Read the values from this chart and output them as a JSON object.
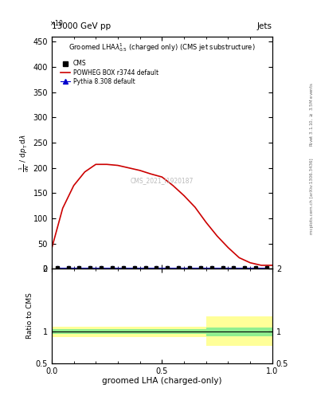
{
  "title": "13000 GeV pp",
  "title_right": "Jets",
  "watermark": "CMS_2021_I1920187",
  "ylabel_main_parts": [
    "mathrm d^{2}N",
    "mathrm d p_{T} mathrm d lambda",
    "1"
  ],
  "ylabel_ratio": "Ratio to CMS",
  "xlabel": "groomed LHA (charged-only)",
  "right_label_top": "Rivet 3.1.10, $\\geq$ 3.5M events",
  "right_label_bottom": "mcplots.cern.ch [arXiv:1306.3436]",
  "red_line_x": [
    0.0,
    0.05,
    0.1,
    0.15,
    0.2,
    0.25,
    0.3,
    0.35,
    0.4,
    0.45,
    0.5,
    0.55,
    0.6,
    0.65,
    0.7,
    0.75,
    0.8,
    0.85,
    0.9,
    0.95,
    1.0
  ],
  "red_line_y": [
    40,
    120,
    165,
    192,
    207,
    207,
    205,
    200,
    195,
    188,
    182,
    165,
    145,
    122,
    92,
    65,
    42,
    22,
    12,
    7,
    7
  ],
  "blue_tri_x": [
    0.025,
    0.075,
    0.125,
    0.175,
    0.225,
    0.275,
    0.325,
    0.375,
    0.425,
    0.475,
    0.525,
    0.575,
    0.625,
    0.675,
    0.725,
    0.775,
    0.825,
    0.875,
    0.925,
    0.975
  ],
  "blue_tri_y": [
    2,
    2,
    2,
    2,
    2,
    2,
    2,
    2,
    2,
    2,
    2,
    2,
    2,
    2,
    2,
    2,
    2,
    2,
    2,
    2
  ],
  "cms_square_x": [
    0.025,
    0.075,
    0.125,
    0.175,
    0.225,
    0.275,
    0.325,
    0.375,
    0.425,
    0.475,
    0.525,
    0.575,
    0.625,
    0.675,
    0.725,
    0.775,
    0.825,
    0.875,
    0.925,
    0.975
  ],
  "cms_square_y": [
    2,
    2,
    2,
    2,
    2,
    2,
    2,
    2,
    2,
    2,
    2,
    2,
    2,
    2,
    2,
    2,
    2,
    2,
    2,
    2
  ],
  "ratio_x_edges": [
    0.0,
    0.05,
    0.1,
    0.15,
    0.2,
    0.25,
    0.3,
    0.35,
    0.4,
    0.45,
    0.5,
    0.55,
    0.6,
    0.65,
    0.7,
    0.75,
    0.8,
    0.85,
    0.9,
    0.95,
    1.0
  ],
  "ratio_green_lo": [
    0.96,
    0.96,
    0.96,
    0.96,
    0.96,
    0.96,
    0.96,
    0.96,
    0.96,
    0.96,
    0.96,
    0.96,
    0.96,
    0.96,
    0.93,
    0.93,
    0.93,
    0.93,
    0.93,
    0.93
  ],
  "ratio_green_hi": [
    1.04,
    1.04,
    1.04,
    1.04,
    1.04,
    1.04,
    1.04,
    1.04,
    1.04,
    1.04,
    1.04,
    1.04,
    1.04,
    1.04,
    1.07,
    1.07,
    1.07,
    1.07,
    1.07,
    1.07
  ],
  "ratio_yellow_lo": [
    0.92,
    0.92,
    0.92,
    0.92,
    0.92,
    0.92,
    0.92,
    0.92,
    0.92,
    0.92,
    0.92,
    0.92,
    0.92,
    0.92,
    0.77,
    0.77,
    0.77,
    0.77,
    0.77,
    0.77
  ],
  "ratio_yellow_hi": [
    1.08,
    1.08,
    1.08,
    1.08,
    1.08,
    1.08,
    1.08,
    1.08,
    1.08,
    1.08,
    1.08,
    1.08,
    1.08,
    1.08,
    1.25,
    1.25,
    1.25,
    1.25,
    1.25,
    1.25
  ],
  "main_ylim": [
    0,
    460
  ],
  "ratio_ylim": [
    0.5,
    2.0
  ],
  "xlim": [
    0.0,
    1.0
  ],
  "red_color": "#cc0000",
  "blue_color": "#0000cc",
  "green_color": "#90EE90",
  "yellow_color": "#FFFF99",
  "background_color": "#ffffff"
}
